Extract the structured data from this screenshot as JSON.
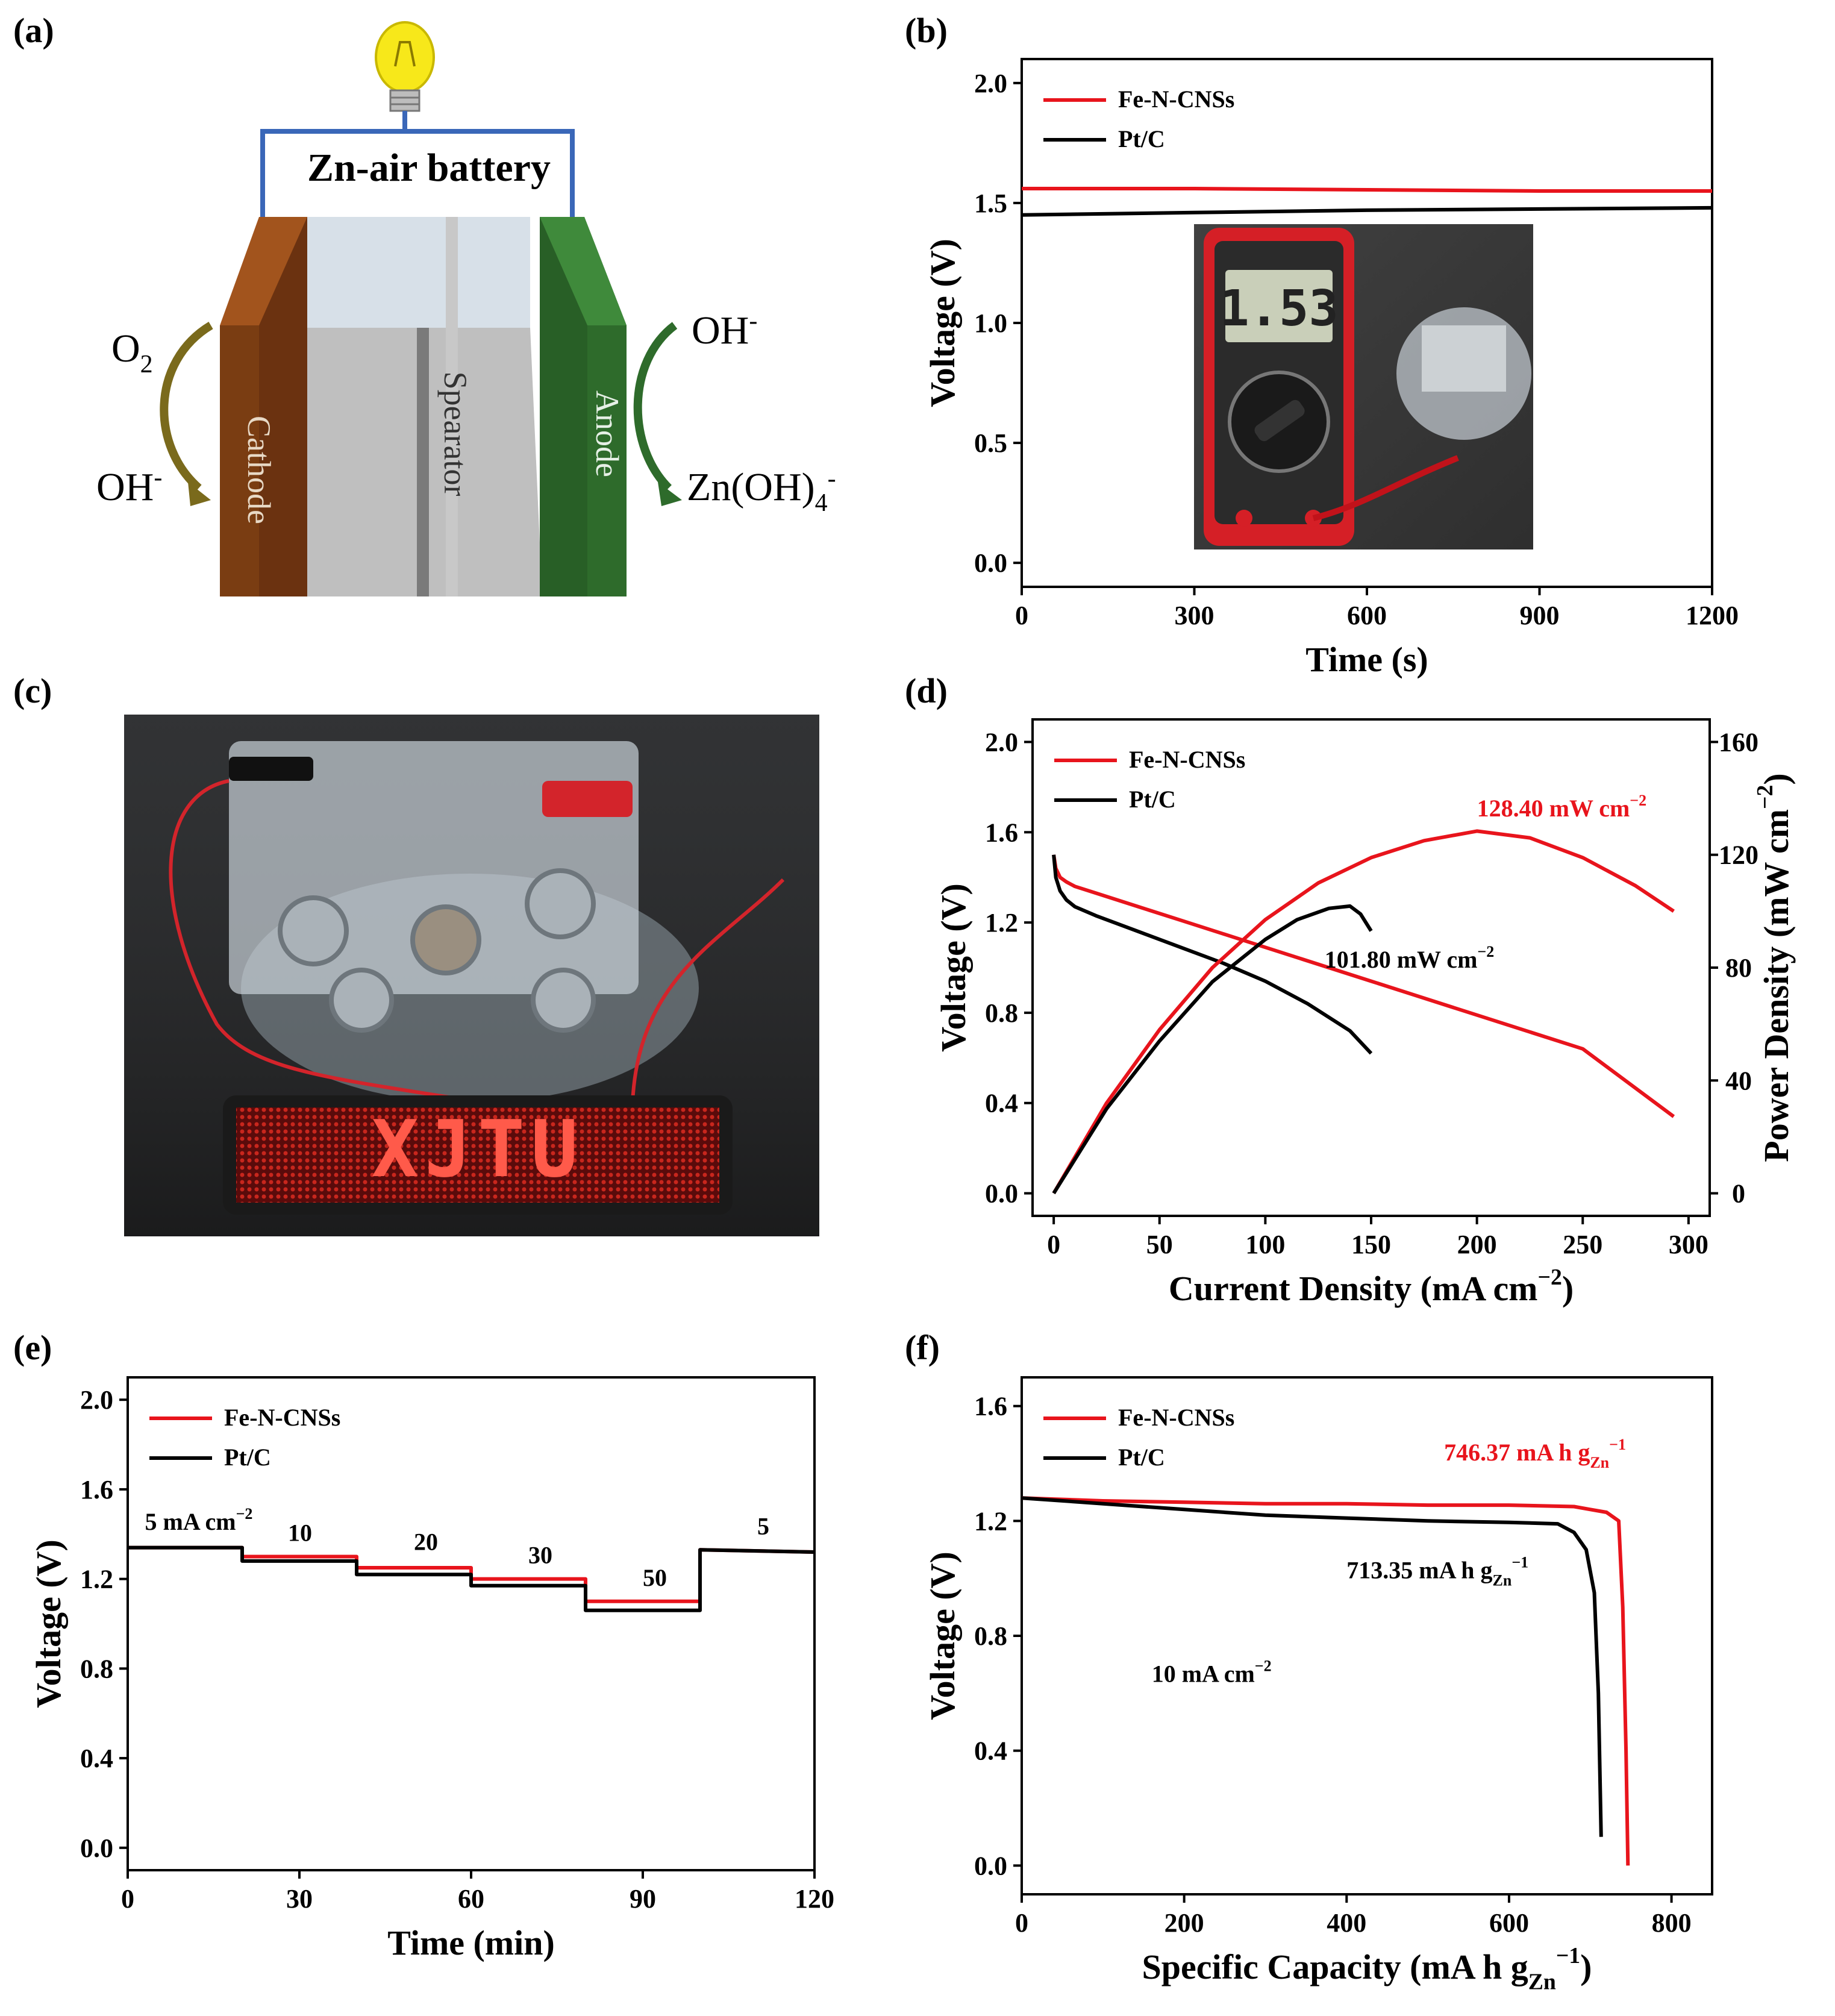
{
  "panels": {
    "a": {
      "label": "(a)",
      "battery_label": "Zn-air battery",
      "cathode": "Cathode",
      "separator": "Spearator",
      "anode": "Anode",
      "o2": "O",
      "o2_sub": "2",
      "oh_left": "OH",
      "oh_left_sup": "-",
      "oh_right": "OH",
      "oh_right_sup": "-",
      "znoh": "Zn(OH)",
      "znoh_sub": "4",
      "znoh_sup": "-",
      "colors": {
        "cathode": "#7a3d12",
        "anode": "#2e6b2b",
        "wire": "#3a67b8",
        "arrow_left": "#7a6a1c",
        "arrow_right": "#2e6b2b"
      }
    },
    "b": {
      "label": "(b)",
      "meter_reading": "1.53"
    },
    "c": {
      "label": "(c)",
      "led_text": "XJTU"
    },
    "d": {
      "label": "(d)"
    },
    "e": {
      "label": "(e)"
    },
    "f": {
      "label": "(f)"
    }
  },
  "chart_data": [
    {
      "panel": "b",
      "type": "line",
      "xlabel": "Time (s)",
      "ylabel": "Voltage (V)",
      "xlim": [
        0,
        1200
      ],
      "ylim": [
        -0.1,
        2.1
      ],
      "xticks": [
        0,
        300,
        600,
        900,
        1200
      ],
      "yticks": [
        0.0,
        0.5,
        1.0,
        1.5,
        2.0
      ],
      "legend": "top-left",
      "series": [
        {
          "name": "Fe-N-CNSs",
          "color": "#e8141c",
          "x": [
            0,
            300,
            600,
            900,
            1200
          ],
          "y": [
            1.56,
            1.56,
            1.555,
            1.55,
            1.55
          ]
        },
        {
          "name": "Pt/C",
          "color": "#000000",
          "x": [
            0,
            300,
            600,
            900,
            1200
          ],
          "y": [
            1.45,
            1.46,
            1.47,
            1.475,
            1.48
          ]
        }
      ]
    },
    {
      "panel": "d",
      "type": "line",
      "xlabel": "Current Density (mA cm",
      "xlabel_sup": "−2",
      "xlabel_end": ")",
      "ylabel": "Voltage (V)",
      "y2label": "Power Density (mW cm",
      "y2label_sup": "−2",
      "y2label_end": ")",
      "xlim": [
        -10,
        310
      ],
      "ylim": [
        -0.1,
        2.1
      ],
      "y2lim": [
        -8,
        168
      ],
      "xticks": [
        0,
        50,
        100,
        150,
        200,
        250,
        300
      ],
      "yticks": [
        0.0,
        0.4,
        0.8,
        1.2,
        1.6,
        2.0
      ],
      "y2ticks": [
        0,
        40,
        80,
        120,
        160
      ],
      "legend": "top-left",
      "annotations": [
        {
          "text": "128.40 mW cm",
          "sup": "−2",
          "color": "#e8141c",
          "x": 200,
          "y": 1.67
        },
        {
          "text": "101.80 mW cm",
          "sup": "−2",
          "color": "#000000",
          "x": 128,
          "y": 1.0
        }
      ],
      "series": [
        {
          "name": "Fe-N-CNSs",
          "axis": "left",
          "color": "#e8141c",
          "x": [
            0,
            1,
            3,
            6,
            10,
            20,
            40,
            60,
            80,
            100,
            150,
            200,
            250,
            293
          ],
          "y": [
            1.5,
            1.44,
            1.4,
            1.38,
            1.36,
            1.33,
            1.27,
            1.21,
            1.15,
            1.09,
            0.94,
            0.79,
            0.64,
            0.34
          ]
        },
        {
          "name": "Pt/C",
          "axis": "left",
          "color": "#000000",
          "x": [
            0,
            1,
            3,
            6,
            10,
            20,
            40,
            60,
            80,
            100,
            120,
            140,
            150
          ],
          "y": [
            1.5,
            1.4,
            1.34,
            1.3,
            1.27,
            1.23,
            1.16,
            1.09,
            1.02,
            0.94,
            0.84,
            0.72,
            0.62
          ]
        },
        {
          "axis": "right",
          "color": "#e8141c",
          "x": [
            0,
            25,
            50,
            75,
            100,
            125,
            150,
            175,
            200,
            225,
            250,
            275,
            293
          ],
          "y": [
            0,
            32,
            58,
            80,
            97,
            110,
            119,
            125,
            128.4,
            126,
            119,
            109,
            100
          ]
        },
        {
          "axis": "right",
          "color": "#000000",
          "x": [
            0,
            25,
            50,
            75,
            100,
            115,
            130,
            140,
            145,
            150
          ],
          "y": [
            0,
            30,
            54,
            75,
            90,
            97,
            101,
            101.8,
            99,
            93
          ]
        }
      ]
    },
    {
      "panel": "e",
      "type": "line",
      "xlabel": "Time (min)",
      "ylabel": "Voltage (V)",
      "xlim": [
        0,
        120
      ],
      "ylim": [
        -0.1,
        2.1
      ],
      "xticks": [
        0,
        30,
        60,
        90,
        120
      ],
      "yticks": [
        0.0,
        0.4,
        0.8,
        1.2,
        1.6,
        2.0
      ],
      "legend": "top-left",
      "annotations": [
        {
          "text": "5 mA cm",
          "sup": "−2",
          "x": 3,
          "y": 1.42
        },
        {
          "text": "10",
          "x": 28,
          "y": 1.37
        },
        {
          "text": "20",
          "x": 50,
          "y": 1.33
        },
        {
          "text": "30",
          "x": 70,
          "y": 1.27
        },
        {
          "text": "50",
          "x": 90,
          "y": 1.17
        },
        {
          "text": "5",
          "x": 110,
          "y": 1.4
        }
      ],
      "series": [
        {
          "name": "Fe-N-CNSs",
          "color": "#e8141c",
          "x": [
            0,
            20,
            20,
            40,
            40,
            60,
            60,
            80,
            80,
            100,
            100,
            120
          ],
          "y": [
            1.34,
            1.34,
            1.3,
            1.3,
            1.25,
            1.25,
            1.2,
            1.2,
            1.1,
            1.1,
            1.33,
            1.32
          ]
        },
        {
          "name": "Pt/C",
          "color": "#000000",
          "x": [
            0,
            20,
            20,
            40,
            40,
            60,
            60,
            80,
            80,
            100,
            100,
            120
          ],
          "y": [
            1.34,
            1.34,
            1.28,
            1.28,
            1.22,
            1.22,
            1.17,
            1.17,
            1.06,
            1.06,
            1.33,
            1.32
          ]
        }
      ]
    },
    {
      "panel": "f",
      "type": "line",
      "xlabel": "Specific Capacity (mA h g",
      "xlabel_sub": "Zn",
      "xlabel_sup": "−1",
      "xlabel_end": ")",
      "ylabel": "Voltage (V)",
      "xlim": [
        0,
        850
      ],
      "ylim": [
        -0.1,
        1.7
      ],
      "xticks": [
        0,
        200,
        400,
        600,
        800
      ],
      "yticks": [
        0.0,
        0.4,
        0.8,
        1.2,
        1.6
      ],
      "legend": "top-left",
      "annotations": [
        {
          "text": "746.37 mA h g",
          "sub": "Zn",
          "sup": "−1",
          "color": "#e8141c",
          "x": 520,
          "y": 1.41
        },
        {
          "text": "713.35 mA h g",
          "sub": "Zn",
          "sup": "−1",
          "color": "#000000",
          "x": 400,
          "y": 1.0
        },
        {
          "text": "10 mA cm",
          "sup": "−2",
          "color": "#000000",
          "x": 160,
          "y": 0.64
        }
      ],
      "series": [
        {
          "name": "Fe-N-CNSs",
          "color": "#e8141c",
          "x": [
            0,
            100,
            200,
            300,
            400,
            500,
            600,
            680,
            700,
            720,
            735,
            740,
            744,
            746.37
          ],
          "y": [
            1.28,
            1.27,
            1.265,
            1.26,
            1.26,
            1.255,
            1.255,
            1.25,
            1.24,
            1.23,
            1.2,
            0.9,
            0.4,
            0.0
          ]
        },
        {
          "name": "Pt/C",
          "color": "#000000",
          "x": [
            0,
            100,
            200,
            300,
            400,
            500,
            600,
            660,
            680,
            695,
            705,
            710,
            713.35
          ],
          "y": [
            1.28,
            1.26,
            1.24,
            1.22,
            1.21,
            1.2,
            1.195,
            1.19,
            1.16,
            1.1,
            0.95,
            0.6,
            0.1
          ]
        }
      ]
    }
  ]
}
